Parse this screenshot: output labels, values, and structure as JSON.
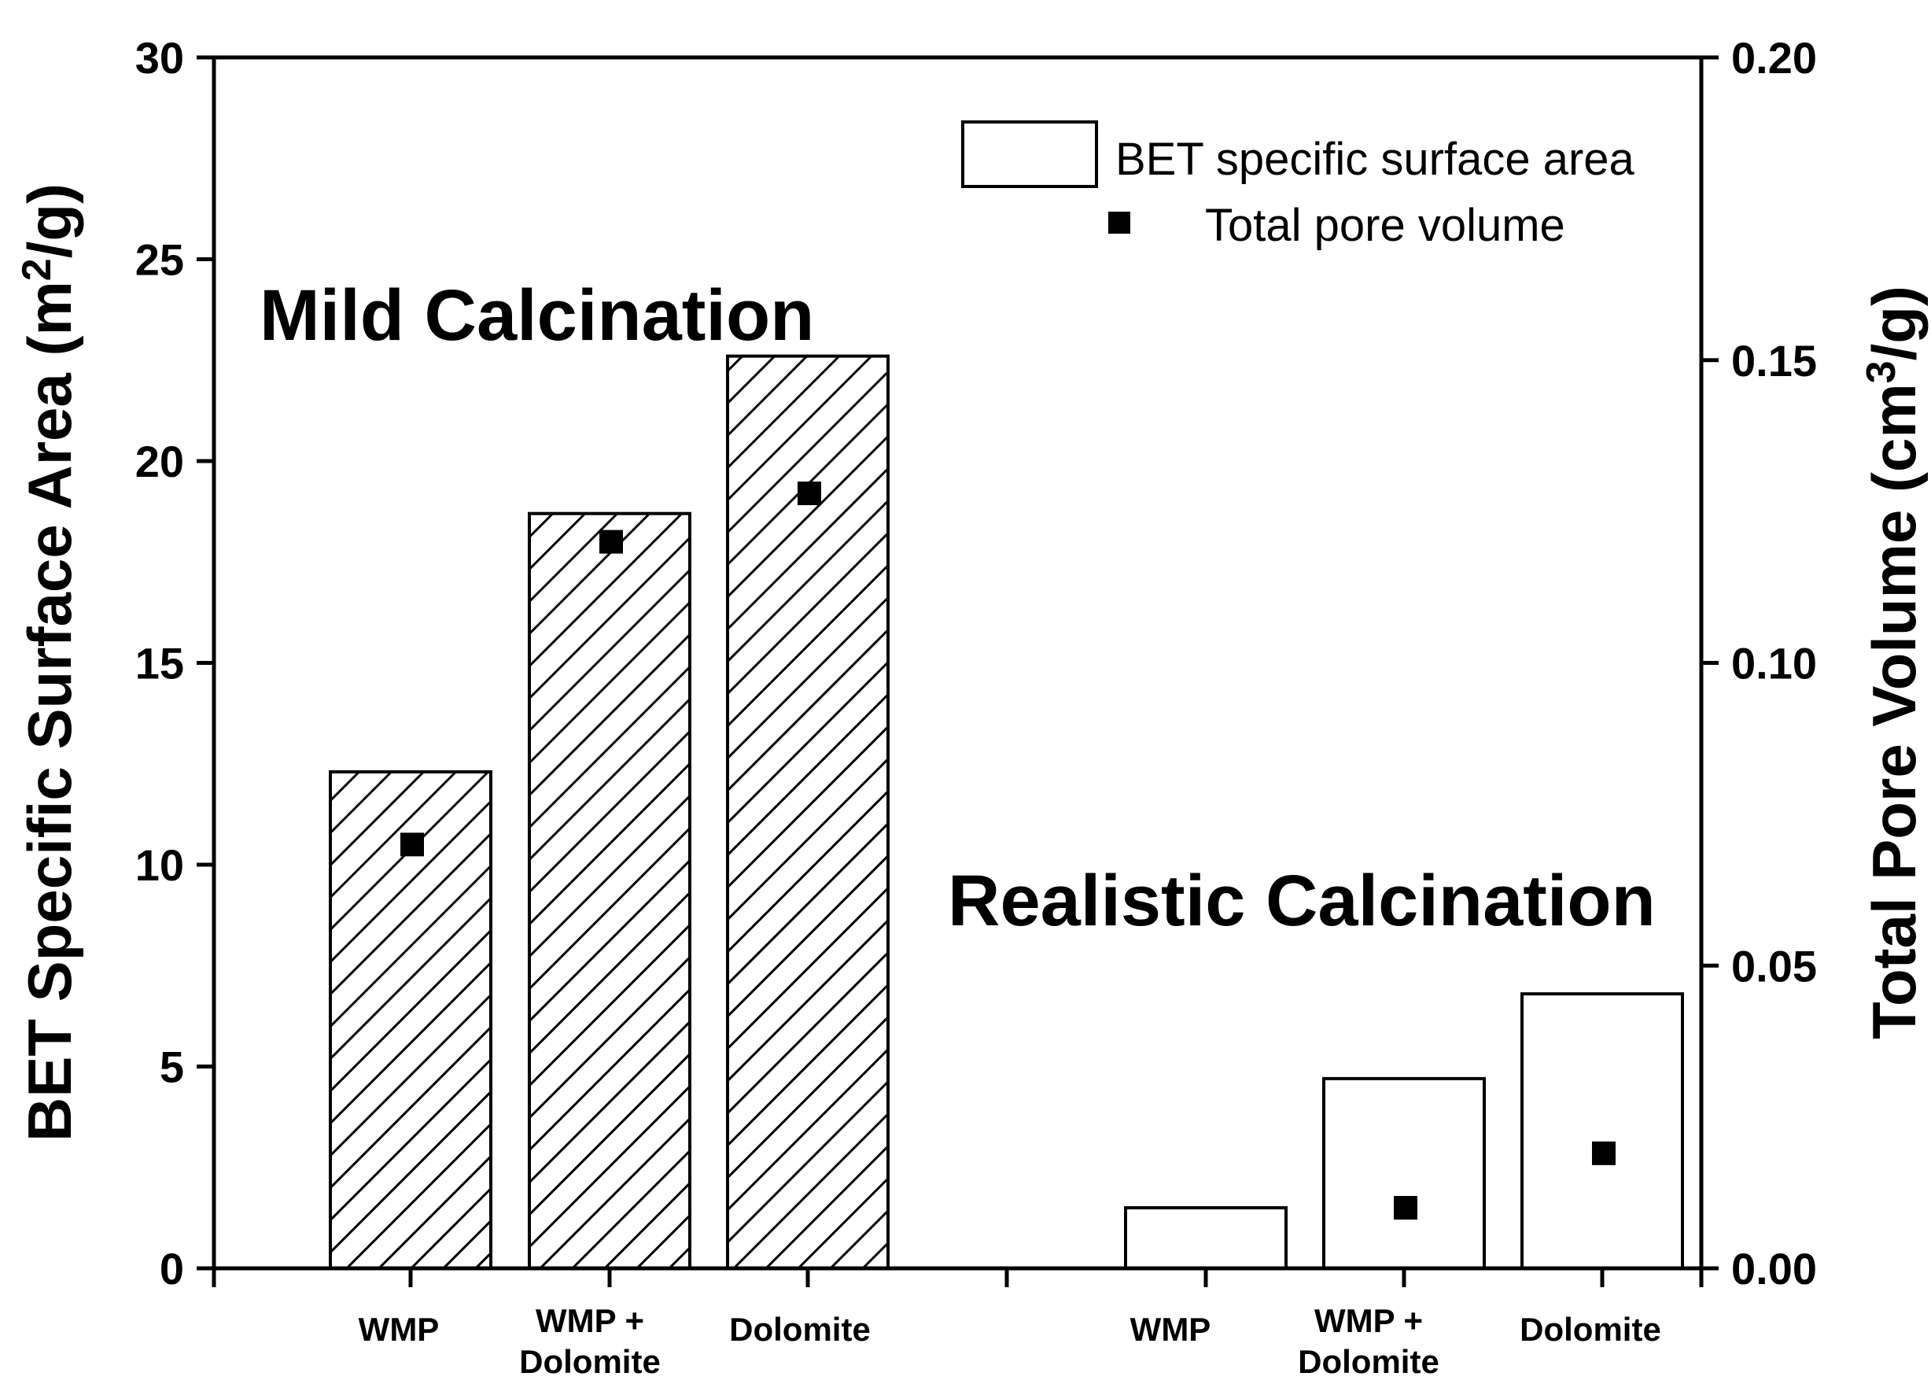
{
  "chart_data": {
    "type": "bar",
    "categories": [
      "WMP",
      "WMP + Dolomite",
      "Dolomite",
      "WMP",
      "WMP + Dolomite",
      "Dolomite"
    ],
    "category_lines": [
      [
        "WMP"
      ],
      [
        "WMP +",
        "Dolomite"
      ],
      [
        "Dolomite"
      ],
      [
        "WMP"
      ],
      [
        "WMP +",
        "Dolomite"
      ],
      [
        "Dolomite"
      ]
    ],
    "groups": [
      {
        "label": "Mild Calcination",
        "categories": [
          0,
          1,
          2
        ],
        "fill": "hatched"
      },
      {
        "label": "Realistic Calcination",
        "categories": [
          3,
          4,
          5
        ],
        "fill": "open"
      }
    ],
    "series": [
      {
        "name": "BET specific surface area",
        "axis": "left",
        "type": "bar",
        "values": [
          12.3,
          18.7,
          22.6,
          1.5,
          4.7,
          6.8
        ]
      },
      {
        "name": "Total pore volume",
        "axis": "right",
        "type": "scatter",
        "marker": "square",
        "values": [
          0.07,
          0.12,
          0.128,
          null,
          0.01,
          0.019
        ]
      }
    ],
    "ylabel": "BET Specific Surface Area (m²/g)",
    "ylabel_parts": {
      "pre": "BET Specific Surface Area (m",
      "sup": "2",
      "post": "/g)"
    },
    "y2label": "Total Pore Volume (cm³/g)",
    "y2label_parts": {
      "pre": "Total Pore Volume (cm",
      "sup": "3",
      "post": "/g)"
    },
    "ylim": [
      0,
      30
    ],
    "y2lim": [
      0,
      0.2
    ],
    "yticks": [
      "0",
      "5",
      "10",
      "15",
      "20",
      "25",
      "30"
    ],
    "y2ticks": [
      "0.00",
      "0.05",
      "0.10",
      "0.15",
      "0.20"
    ],
    "legend": {
      "position": "top-right",
      "entries": [
        "BET specific surface area",
        "Total pore volume"
      ]
    },
    "grid": false,
    "colors": {
      "marker": "#000000",
      "bar_edge": "#000000",
      "hatch": "#000000",
      "bar_open_fill": "#ffffff"
    }
  }
}
